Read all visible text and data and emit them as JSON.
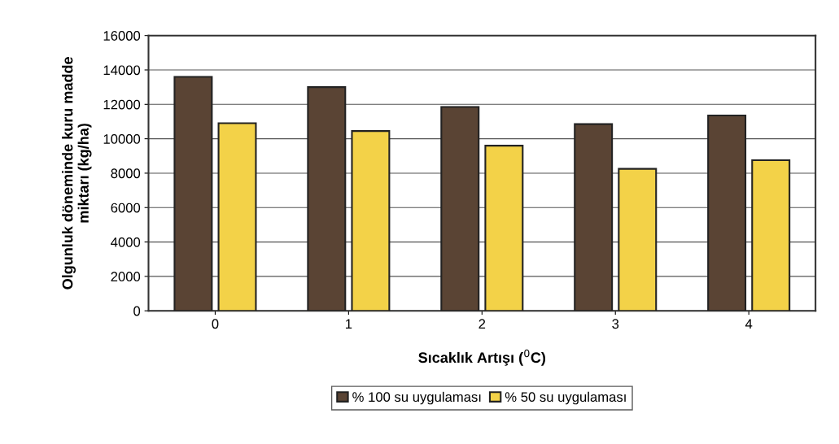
{
  "chart_data": {
    "type": "bar",
    "xlabel": "Sıcaklık Artışı ($^{0}$C)",
    "ylabel": "Olgunluk döneminde kuru madde\nmiktarı (kg/ha)",
    "categories": [
      "0",
      "1",
      "2",
      "3",
      "4"
    ],
    "series": [
      {
        "name": "% 100 su uygulaması",
        "color": "#5a4434",
        "values": [
          13600,
          13000,
          11850,
          10850,
          11350
        ]
      },
      {
        "name": "% 50 su uygulaması",
        "color": "#f3d248",
        "values": [
          10900,
          10450,
          9600,
          8250,
          8750
        ]
      }
    ],
    "ylim": [
      0,
      16000
    ],
    "yticks": [
      0,
      2000,
      4000,
      6000,
      8000,
      10000,
      12000,
      14000,
      16000
    ],
    "grid": "y",
    "legend": "bottom"
  }
}
